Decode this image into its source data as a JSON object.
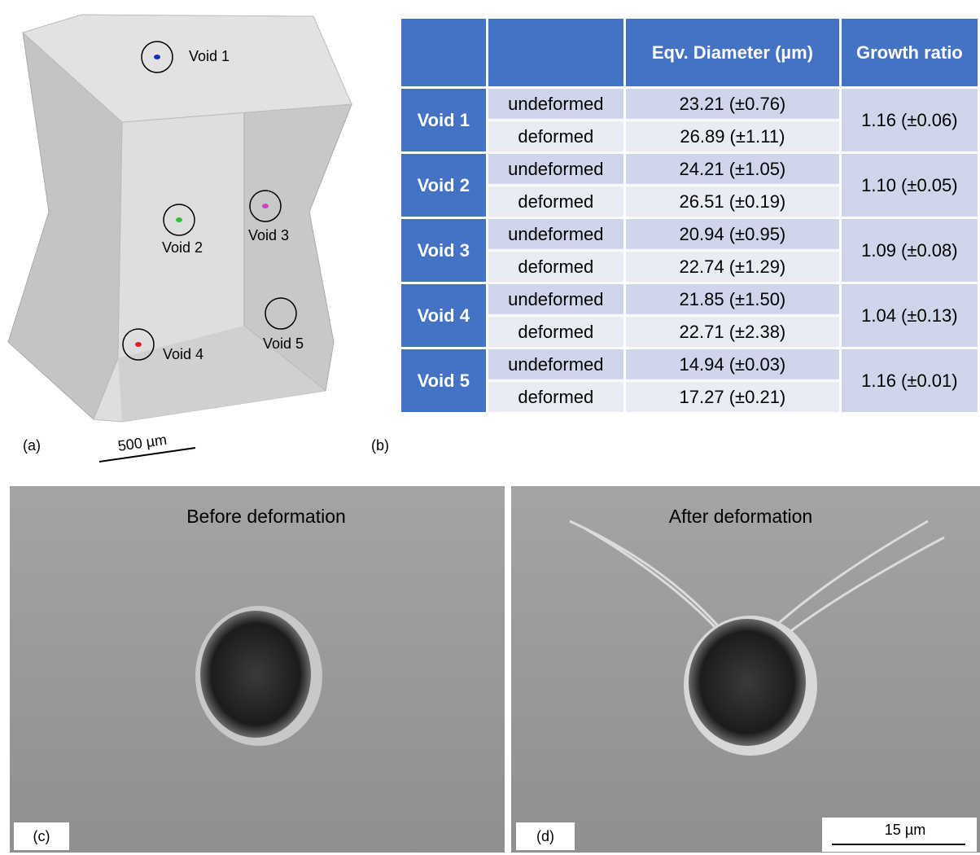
{
  "panel_a": {
    "label": "(a)",
    "scale_bar": "500 µm",
    "voids": [
      "Void 1",
      "Void 2",
      "Void 3",
      "Void 4",
      "Void 5"
    ]
  },
  "panel_b": {
    "label": "(b)",
    "table": {
      "header": [
        "Eqv. Diameter (µm)",
        "Growth ratio"
      ],
      "rows": [
        {
          "void": "Void 1",
          "growth_ratio": "1.16 (±0.06)",
          "states": [
            {
              "state": "undeformed",
              "diameter": "23.21 (±0.76)"
            },
            {
              "state": "deformed",
              "diameter": "26.89 (±1.11)"
            }
          ]
        },
        {
          "void": "Void 2",
          "growth_ratio": "1.10 (±0.05)",
          "states": [
            {
              "state": "undeformed",
              "diameter": "24.21 (±1.05)"
            },
            {
              "state": "deformed",
              "diameter": "26.51 (±0.19)"
            }
          ]
        },
        {
          "void": "Void 3",
          "growth_ratio": "1.09 (±0.08)",
          "states": [
            {
              "state": "undeformed",
              "diameter": "20.94 (±0.95)"
            },
            {
              "state": "deformed",
              "diameter": "22.74 (±1.29)"
            }
          ]
        },
        {
          "void": "Void 4",
          "growth_ratio": "1.04 (±0.13)",
          "states": [
            {
              "state": "undeformed",
              "diameter": "21.85 (±1.50)"
            },
            {
              "state": "deformed",
              "diameter": "22.71 (±2.38)"
            }
          ]
        },
        {
          "void": "Void 5",
          "growth_ratio": "1.16 (±0.01)",
          "states": [
            {
              "state": "undeformed",
              "diameter": "14.94 (±0.03)"
            },
            {
              "state": "deformed",
              "diameter": "17.27 (±0.21)"
            }
          ]
        }
      ]
    }
  },
  "panel_c": {
    "label": "(c)",
    "title": "Before deformation"
  },
  "panel_d": {
    "label": "(d)",
    "title": "After deformation",
    "scale_bar": "15 µm"
  }
}
